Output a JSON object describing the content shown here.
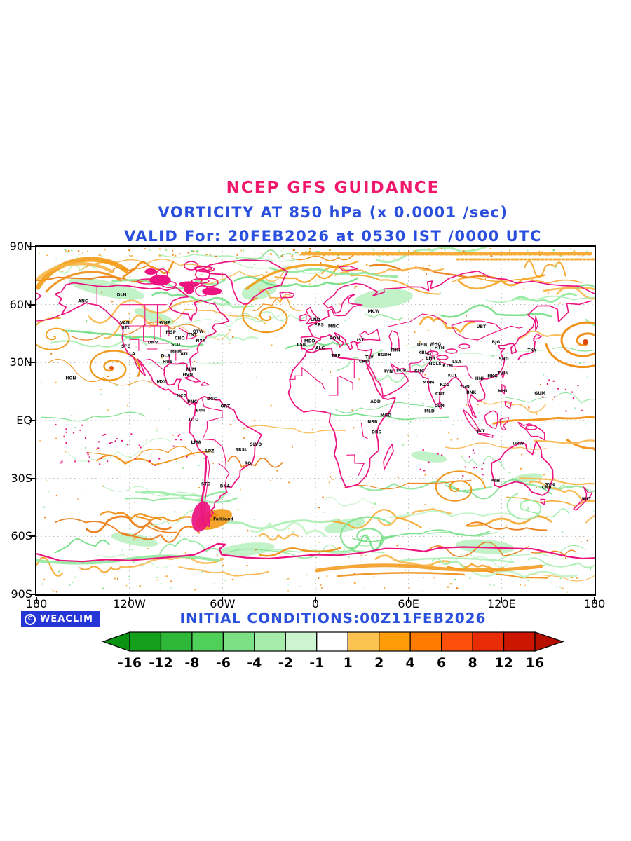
{
  "header": {
    "title": "NCEP GFS GUIDANCE",
    "subtitle": "VORTICITY AT 850 hPa (x 0.0001 /sec)",
    "valid_line": "VALID For: 20FEB2026 at 0530 IST /0000 UTC"
  },
  "footer": {
    "logo_text": "WEACLIM",
    "logo_symbol": "C",
    "initial_conditions": "INITIAL CONDITIONS:00Z11FEB2026"
  },
  "colors": {
    "title_pink": "#f0186c",
    "text_blue": "#2b4fdd",
    "coast_magenta": "#ec1380",
    "logo_bg": "#2535d6",
    "grid_gray": "#b5b5b5"
  },
  "colorbar": {
    "labels": [
      "-16",
      "-12",
      "-8",
      "-6",
      "-4",
      "-2",
      "-1",
      "1",
      "2",
      "4",
      "6",
      "8",
      "12",
      "16"
    ],
    "segments": [
      "#15a01c",
      "#2fb73a",
      "#4fd058",
      "#7ce085",
      "#a5ecab",
      "#ccf5cf",
      "#ffffff",
      "#fdc352",
      "#ff9c07",
      "#ff7b00",
      "#fb4f0a",
      "#e82c05",
      "#cd1602"
    ],
    "left_arrow": "#0b9212",
    "right_arrow": "#b60e00"
  },
  "map": {
    "lat_ticks": [
      {
        "label": "90N",
        "lat": 90
      },
      {
        "label": "60N",
        "lat": 60
      },
      {
        "label": "30N",
        "lat": 30
      },
      {
        "label": "EQ",
        "lat": 0
      },
      {
        "label": "30S",
        "lat": -30
      },
      {
        "label": "60S",
        "lat": -60
      },
      {
        "label": "90S",
        "lat": -90
      }
    ],
    "lon_ticks": [
      {
        "label": "180",
        "lon": -180
      },
      {
        "label": "120W",
        "lon": -120
      },
      {
        "label": "60W",
        "lon": -60
      },
      {
        "label": "0",
        "lon": 0
      },
      {
        "label": "60E",
        "lon": 60
      },
      {
        "label": "120E",
        "lon": 120
      },
      {
        "label": "180",
        "lon": 180
      }
    ],
    "grid_lats": [
      60,
      30,
      0,
      -30,
      -60
    ],
    "grid_lons": [
      -120,
      -60,
      0,
      60,
      120
    ],
    "stations": [
      {
        "label": "ANC",
        "lon": -150,
        "lat": 61.2
      },
      {
        "label": "DLH",
        "lon": -125,
        "lat": 64.5
      },
      {
        "label": "VAN",
        "lon": -123.1,
        "lat": 49.9
      },
      {
        "label": "STL",
        "lon": -122.3,
        "lat": 47.3
      },
      {
        "label": "SFC",
        "lon": -122.4,
        "lat": 37.8
      },
      {
        "label": "LA",
        "lon": -118.2,
        "lat": 33.9
      },
      {
        "label": "DNV",
        "lon": -104.9,
        "lat": 39.7
      },
      {
        "label": "MSP",
        "lon": -93.3,
        "lat": 45
      },
      {
        "label": "WNP",
        "lon": -97.1,
        "lat": 49.9
      },
      {
        "label": "CHO",
        "lon": -87.6,
        "lat": 41.9
      },
      {
        "label": "SLO",
        "lon": -90.2,
        "lat": 38.6
      },
      {
        "label": "MEM",
        "lon": -90,
        "lat": 35.1
      },
      {
        "label": "ATL",
        "lon": -84.4,
        "lat": 33.7
      },
      {
        "label": "DLS",
        "lon": -96.8,
        "lat": 32.8
      },
      {
        "label": "HUS",
        "lon": -95.4,
        "lat": 29.8
      },
      {
        "label": "NYK",
        "lon": -74,
        "lat": 40.7
      },
      {
        "label": "OTW",
        "lon": -75.7,
        "lat": 45.4
      },
      {
        "label": "TNT",
        "lon": -79.4,
        "lat": 43.7
      },
      {
        "label": "MIM",
        "lon": -80.2,
        "lat": 25.8
      },
      {
        "label": "HVN",
        "lon": -82.4,
        "lat": 23.1
      },
      {
        "label": "MXC",
        "lon": -99.1,
        "lat": 19.4
      },
      {
        "label": "NCG",
        "lon": -86.3,
        "lat": 12.1
      },
      {
        "label": "PNC",
        "lon": -79.5,
        "lat": 9
      },
      {
        "label": "BOT",
        "lon": -74.1,
        "lat": 4.6
      },
      {
        "label": "GTO",
        "lon": -78.5,
        "lat": -0.2
      },
      {
        "label": "DGC",
        "lon": -66.9,
        "lat": 10.5
      },
      {
        "label": "ORT",
        "lon": -58.2,
        "lat": 6.8
      },
      {
        "label": "HON",
        "lon": -157.9,
        "lat": 21.3
      },
      {
        "label": "LMA",
        "lon": -77,
        "lat": -12
      },
      {
        "label": "LPZ",
        "lon": -68.2,
        "lat": -16.5
      },
      {
        "label": "BRSL",
        "lon": -47.9,
        "lat": -15.8
      },
      {
        "label": "SLVD",
        "lon": -38.5,
        "lat": -13
      },
      {
        "label": "ROJ",
        "lon": -43.2,
        "lat": -22.9
      },
      {
        "label": "STO",
        "lon": -70.7,
        "lat": -33.5
      },
      {
        "label": "BNA",
        "lon": -58.4,
        "lat": -34.6
      },
      {
        "label": "Falkland",
        "lon": -59.5,
        "lat": -51.7
      },
      {
        "label": "LND",
        "lon": -0.1,
        "lat": 51.5
      },
      {
        "label": "PRS",
        "lon": 2.3,
        "lat": 48.9
      },
      {
        "label": "MNC",
        "lon": 11.6,
        "lat": 48.1
      },
      {
        "label": "ROM",
        "lon": 12.5,
        "lat": 41.9
      },
      {
        "label": "MDD",
        "lon": -3.7,
        "lat": 40.4
      },
      {
        "label": "LSB",
        "lon": -9.1,
        "lat": 38.7
      },
      {
        "label": "ALG",
        "lon": 3,
        "lat": 36.8
      },
      {
        "label": "TRP",
        "lon": 13.2,
        "lat": 32.9
      },
      {
        "label": "CRO",
        "lon": 31.2,
        "lat": 30
      },
      {
        "label": "TLV",
        "lon": 34.8,
        "lat": 32.1
      },
      {
        "label": "IST",
        "lon": 29,
        "lat": 41
      },
      {
        "label": "MCW",
        "lon": 37.6,
        "lat": 55.8
      },
      {
        "label": "BGDH",
        "lon": 44.4,
        "lat": 33.3
      },
      {
        "label": "THN",
        "lon": 51.4,
        "lat": 35.7
      },
      {
        "label": "RYN",
        "lon": 46.7,
        "lat": 24.6
      },
      {
        "label": "DUB",
        "lon": 55.3,
        "lat": 25.3
      },
      {
        "label": "ADD",
        "lon": 38.7,
        "lat": 9
      },
      {
        "label": "MGD",
        "lon": 45.3,
        "lat": 2
      },
      {
        "label": "NRB",
        "lon": 36.8,
        "lat": -1.3
      },
      {
        "label": "DRS",
        "lon": 39.3,
        "lat": -6.8
      },
      {
        "label": "KBL",
        "lon": 69.2,
        "lat": 34.5
      },
      {
        "label": "ISL",
        "lon": 73.1,
        "lat": 33.7
      },
      {
        "label": "LHR",
        "lon": 74.3,
        "lat": 31.5
      },
      {
        "label": "NDLS",
        "lon": 77.2,
        "lat": 28.6
      },
      {
        "label": "KTM",
        "lon": 85.3,
        "lat": 27.7
      },
      {
        "label": "LSA",
        "lon": 91.1,
        "lat": 29.7
      },
      {
        "label": "WHG",
        "lon": 77.3,
        "lat": 38.8
      },
      {
        "label": "HTN",
        "lon": 79.9,
        "lat": 37.1
      },
      {
        "label": "KHC",
        "lon": 67,
        "lat": 24.9
      },
      {
        "label": "MUM",
        "lon": 72.8,
        "lat": 19
      },
      {
        "label": "KZG",
        "lon": 83.3,
        "lat": 17.7
      },
      {
        "label": "KOL",
        "lon": 88.4,
        "lat": 22.6
      },
      {
        "label": "CNT",
        "lon": 80.3,
        "lat": 13.1
      },
      {
        "label": "CLM",
        "lon": 79.9,
        "lat": 6.9
      },
      {
        "label": "MLD",
        "lon": 73.5,
        "lat": 4.2
      },
      {
        "label": "DHB",
        "lon": 68.8,
        "lat": 38.6
      },
      {
        "label": "UBT",
        "lon": 106.9,
        "lat": 47.9
      },
      {
        "label": "BJG",
        "lon": 116.4,
        "lat": 39.9
      },
      {
        "label": "TKY",
        "lon": 139.7,
        "lat": 35.7
      },
      {
        "label": "SHG",
        "lon": 121.5,
        "lat": 31.2
      },
      {
        "label": "TWN",
        "lon": 121,
        "lat": 23.8
      },
      {
        "label": "HKG",
        "lon": 114.2,
        "lat": 22.3
      },
      {
        "label": "HNI",
        "lon": 105.8,
        "lat": 21
      },
      {
        "label": "BNK",
        "lon": 100.5,
        "lat": 13.8
      },
      {
        "label": "YGN",
        "lon": 96.2,
        "lat": 16.9
      },
      {
        "label": "MHL",
        "lon": 121,
        "lat": 14.6
      },
      {
        "label": "GUM",
        "lon": 144.8,
        "lat": 13.5
      },
      {
        "label": "JKT",
        "lon": 106.8,
        "lat": -6.2
      },
      {
        "label": "DRW",
        "lon": 130.8,
        "lat": -12.5
      },
      {
        "label": "PTH",
        "lon": 115.9,
        "lat": -32
      },
      {
        "label": "SYN",
        "lon": 151.2,
        "lat": -33.9
      },
      {
        "label": "CNB",
        "lon": 149.1,
        "lat": -35.3
      },
      {
        "label": "WLT",
        "lon": 174.8,
        "lat": -41.3
      }
    ]
  }
}
